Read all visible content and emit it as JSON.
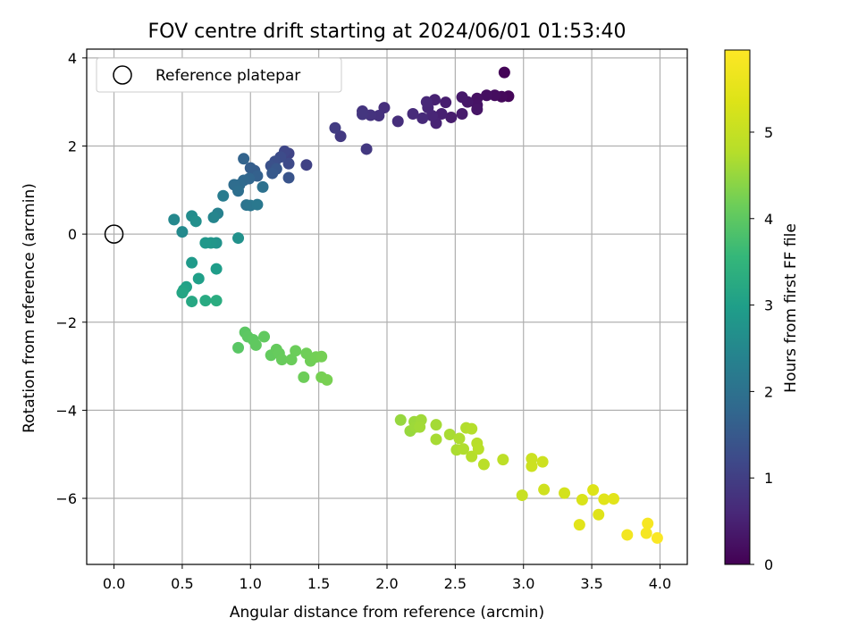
{
  "chart_data": {
    "type": "scatter",
    "title": "FOV centre drift starting at 2024/06/01 01:53:40",
    "xlabel": "Angular distance from reference (arcmin)",
    "ylabel": "Rotation from reference (arcmin)",
    "xlim": [
      -0.2,
      4.2
    ],
    "ylim": [
      -7.5,
      4.2
    ],
    "xticks": [
      0.0,
      0.5,
      1.0,
      1.5,
      2.0,
      2.5,
      3.0,
      3.5,
      4.0
    ],
    "xtick_labels": [
      "0.0",
      "0.5",
      "1.0",
      "1.5",
      "2.0",
      "2.5",
      "3.0",
      "3.5",
      "4.0"
    ],
    "yticks": [
      -6,
      -4,
      -2,
      0,
      2,
      4
    ],
    "ytick_labels": [
      "−6",
      "−4",
      "−2",
      "0",
      "2",
      "4"
    ],
    "grid": true,
    "legend": {
      "placement": "top-left",
      "entries": [
        "Reference platepar"
      ]
    },
    "reference_point": {
      "label": "Reference platepar",
      "x": 0.0,
      "y": 0.0,
      "marker": "open-circle"
    },
    "colorbar": {
      "label": "Hours from first FF file",
      "colormap": "viridis",
      "range": [
        0,
        5.95
      ],
      "ticks": [
        0,
        1,
        2,
        3,
        4,
        5
      ],
      "tick_labels": [
        "0",
        "1",
        "2",
        "3",
        "4",
        "5"
      ]
    },
    "points": [
      [
        2.86,
        3.67,
        0.05
      ],
      [
        2.89,
        3.13,
        0.08
      ],
      [
        2.84,
        3.12,
        0.12
      ],
      [
        2.79,
        3.15,
        0.18
      ],
      [
        2.73,
        3.15,
        0.22
      ],
      [
        2.66,
        3.08,
        0.25
      ],
      [
        2.66,
        2.93,
        0.28
      ],
      [
        2.66,
        2.83,
        0.3
      ],
      [
        2.59,
        3.0,
        0.33
      ],
      [
        2.55,
        3.11,
        0.36
      ],
      [
        2.55,
        2.73,
        0.39
      ],
      [
        2.47,
        2.65,
        0.42
      ],
      [
        2.43,
        2.99,
        0.45
      ],
      [
        2.4,
        2.73,
        0.48
      ],
      [
        2.35,
        3.05,
        0.5
      ],
      [
        2.36,
        2.52,
        0.53
      ],
      [
        2.33,
        2.69,
        0.56
      ],
      [
        2.3,
        2.87,
        0.58
      ],
      [
        2.29,
        3.0,
        0.6
      ],
      [
        2.26,
        2.63,
        0.63
      ],
      [
        2.19,
        2.73,
        0.66
      ],
      [
        2.08,
        2.56,
        0.7
      ],
      [
        1.98,
        2.87,
        0.73
      ],
      [
        1.94,
        2.69,
        0.76
      ],
      [
        1.88,
        2.7,
        0.79
      ],
      [
        1.82,
        2.79,
        0.82
      ],
      [
        1.82,
        2.72,
        0.85
      ],
      [
        1.85,
        1.93,
        0.88
      ],
      [
        1.66,
        2.22,
        0.91
      ],
      [
        1.62,
        2.41,
        0.95
      ],
      [
        1.41,
        1.57,
        1.05
      ],
      [
        1.28,
        1.83,
        1.1
      ],
      [
        1.25,
        1.88,
        1.15
      ],
      [
        1.28,
        1.6,
        1.2
      ],
      [
        1.22,
        1.75,
        1.25
      ],
      [
        1.18,
        1.65,
        1.3
      ],
      [
        1.15,
        1.55,
        1.35
      ],
      [
        1.28,
        1.28,
        1.4
      ],
      [
        1.19,
        1.48,
        1.45
      ],
      [
        1.16,
        1.38,
        1.5
      ],
      [
        1.03,
        1.44,
        1.55
      ],
      [
        1.0,
        1.5,
        1.6
      ],
      [
        1.05,
        1.32,
        1.65
      ],
      [
        0.95,
        1.71,
        1.7
      ],
      [
        0.99,
        1.26,
        1.75
      ],
      [
        0.95,
        1.22,
        1.8
      ],
      [
        0.92,
        1.12,
        1.85
      ],
      [
        0.88,
        1.12,
        1.9
      ],
      [
        0.91,
        0.98,
        1.95
      ],
      [
        1.09,
        1.07,
        2.0
      ],
      [
        0.97,
        0.66,
        2.05
      ],
      [
        1.0,
        0.65,
        2.1
      ],
      [
        1.05,
        0.67,
        2.15
      ],
      [
        0.8,
        0.87,
        2.25
      ],
      [
        0.76,
        0.47,
        2.35
      ],
      [
        0.73,
        0.38,
        2.45
      ],
      [
        0.44,
        0.33,
        2.5
      ],
      [
        0.5,
        0.05,
        2.55
      ],
      [
        0.57,
        0.41,
        2.6
      ],
      [
        0.6,
        0.29,
        2.65
      ],
      [
        0.91,
        -0.09,
        2.7
      ],
      [
        0.75,
        -0.2,
        2.75
      ],
      [
        0.71,
        -0.2,
        2.8
      ],
      [
        0.67,
        -0.2,
        2.85
      ],
      [
        0.57,
        -0.65,
        2.9
      ],
      [
        0.75,
        -0.79,
        2.95
      ],
      [
        0.62,
        -1.01,
        3.0
      ],
      [
        0.53,
        -1.2,
        3.05
      ],
      [
        0.51,
        -1.27,
        3.1
      ],
      [
        0.5,
        -1.33,
        3.15
      ],
      [
        0.57,
        -1.53,
        3.2
      ],
      [
        0.67,
        -1.51,
        3.25
      ],
      [
        0.75,
        -1.51,
        3.3
      ],
      [
        0.91,
        -2.58,
        3.95
      ],
      [
        0.96,
        -2.23,
        3.97
      ],
      [
        0.98,
        -2.33,
        3.99
      ],
      [
        1.02,
        -2.4,
        4.0
      ],
      [
        1.04,
        -2.52,
        4.02
      ],
      [
        1.1,
        -2.33,
        4.03
      ],
      [
        1.15,
        -2.75,
        4.05
      ],
      [
        1.19,
        -2.62,
        4.07
      ],
      [
        1.21,
        -2.71,
        4.08
      ],
      [
        1.23,
        -2.85,
        4.1
      ],
      [
        1.3,
        -2.85,
        4.12
      ],
      [
        1.33,
        -2.65,
        4.13
      ],
      [
        1.39,
        -3.25,
        4.15
      ],
      [
        1.41,
        -2.71,
        4.17
      ],
      [
        1.44,
        -2.88,
        4.18
      ],
      [
        1.48,
        -2.79,
        4.2
      ],
      [
        1.52,
        -2.78,
        4.22
      ],
      [
        1.52,
        -3.25,
        4.23
      ],
      [
        1.56,
        -3.31,
        4.25
      ],
      [
        2.1,
        -4.22,
        4.5
      ],
      [
        2.17,
        -4.47,
        4.52
      ],
      [
        2.2,
        -4.26,
        4.54
      ],
      [
        2.21,
        -4.38,
        4.56
      ],
      [
        2.25,
        -4.22,
        4.58
      ],
      [
        2.24,
        -4.38,
        4.6
      ],
      [
        2.36,
        -4.33,
        4.62
      ],
      [
        2.36,
        -4.66,
        4.64
      ],
      [
        2.46,
        -4.55,
        4.66
      ],
      [
        2.51,
        -4.9,
        4.68
      ],
      [
        2.53,
        -4.64,
        4.7
      ],
      [
        2.56,
        -4.88,
        4.72
      ],
      [
        2.58,
        -4.4,
        4.74
      ],
      [
        2.62,
        -4.42,
        4.76
      ],
      [
        2.62,
        -5.05,
        4.78
      ],
      [
        2.66,
        -4.75,
        4.8
      ],
      [
        2.67,
        -4.88,
        4.82
      ],
      [
        2.71,
        -5.23,
        4.84
      ],
      [
        2.85,
        -5.12,
        4.88
      ],
      [
        2.99,
        -5.93,
        5.05
      ],
      [
        3.06,
        -5.1,
        5.08
      ],
      [
        3.06,
        -5.27,
        5.1
      ],
      [
        3.14,
        -5.17,
        5.12
      ],
      [
        3.15,
        -5.8,
        5.15
      ],
      [
        3.3,
        -5.88,
        5.2
      ],
      [
        3.41,
        -6.6,
        5.45
      ],
      [
        3.43,
        -6.03,
        5.3
      ],
      [
        3.51,
        -5.81,
        5.35
      ],
      [
        3.55,
        -6.37,
        5.4
      ],
      [
        3.59,
        -6.02,
        5.43
      ],
      [
        3.66,
        -6.01,
        5.45
      ],
      [
        3.76,
        -6.83,
        5.75
      ],
      [
        3.9,
        -6.79,
        5.8
      ],
      [
        3.91,
        -6.57,
        5.82
      ],
      [
        3.98,
        -6.9,
        5.9
      ]
    ]
  }
}
